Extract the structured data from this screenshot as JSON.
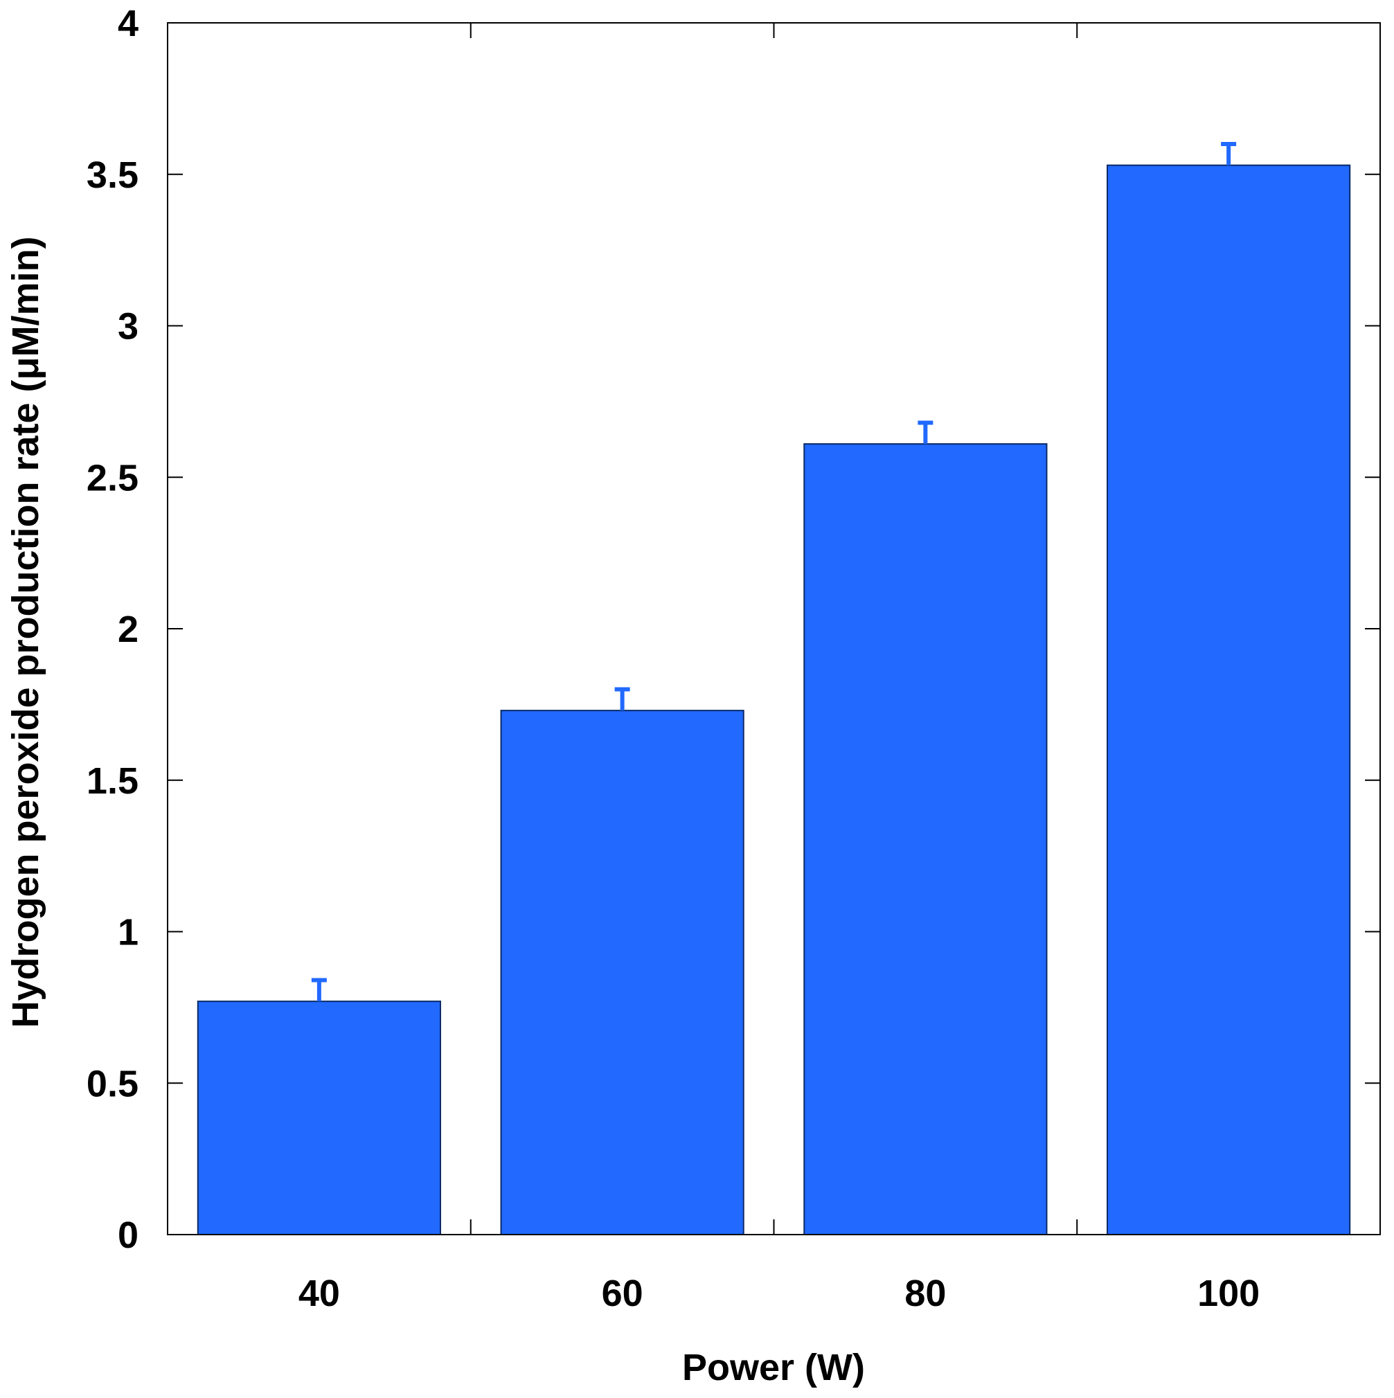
{
  "chart_data": {
    "type": "bar",
    "categories": [
      "40",
      "60",
      "80",
      "100"
    ],
    "values": [
      0.77,
      1.73,
      2.61,
      3.53
    ],
    "errors": [
      0.07,
      0.07,
      0.07,
      0.07
    ],
    "xlabel": "Power (W)",
    "ylabel": "Hydrogen peroxide production rate (μM/min)",
    "ylim": [
      0,
      4
    ],
    "yticks": [
      "0",
      "0.5",
      "1",
      "1.5",
      "2",
      "2.5",
      "3",
      "3.5",
      "4"
    ],
    "grid": false,
    "legend": "none",
    "colors": {
      "bar": "#2169FF",
      "bar_edge": "#0A2A66",
      "error_bar": "#2169FF",
      "axis": "#000000"
    }
  }
}
